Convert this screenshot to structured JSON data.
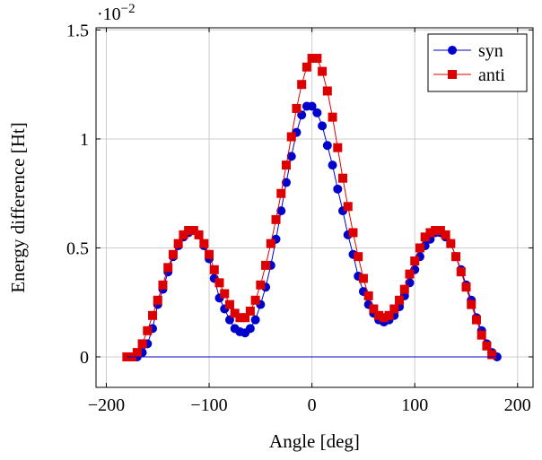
{
  "chart_data": {
    "type": "line",
    "xlabel": "Angle [deg]",
    "ylabel": "Energy difference [Ht]",
    "y_scale_label": "·10",
    "y_scale_exponent": "−2",
    "xlim": [
      -210,
      215
    ],
    "ylim": [
      -0.14,
      1.51
    ],
    "x_ticks": [
      -200,
      -100,
      0,
      100,
      200
    ],
    "x_tick_labels": [
      "−200",
      "−100",
      "0",
      "100",
      "200"
    ],
    "y_ticks": [
      0,
      0.5,
      1,
      1.5
    ],
    "y_tick_labels": [
      "0",
      "0.5",
      "1",
      "1.5"
    ],
    "grid": true,
    "legend_position": "top-right",
    "series": [
      {
        "name": "syn",
        "color": "#0000cc",
        "marker": "circle",
        "x": [
          -175,
          -170,
          -165,
          -160,
          -155,
          -150,
          -145,
          -140,
          -135,
          -130,
          -125,
          -120,
          -115,
          -110,
          -105,
          -100,
          -95,
          -90,
          -85,
          -80,
          -75,
          -70,
          -65,
          -60,
          -55,
          -50,
          -45,
          -40,
          -35,
          -30,
          -25,
          -20,
          -15,
          -10,
          -5,
          0,
          5,
          10,
          15,
          20,
          25,
          30,
          35,
          40,
          45,
          50,
          55,
          60,
          65,
          70,
          75,
          80,
          85,
          90,
          95,
          100,
          105,
          110,
          115,
          120,
          125,
          130,
          135,
          140,
          145,
          150,
          155,
          160,
          165,
          170,
          175,
          180
        ],
        "y": [
          0.0,
          0.0,
          0.02,
          0.06,
          0.13,
          0.24,
          0.31,
          0.39,
          0.46,
          0.51,
          0.55,
          0.57,
          0.58,
          0.56,
          0.51,
          0.45,
          0.36,
          0.27,
          0.22,
          0.17,
          0.13,
          0.115,
          0.11,
          0.13,
          0.17,
          0.24,
          0.32,
          0.42,
          0.54,
          0.67,
          0.8,
          0.92,
          1.03,
          1.11,
          1.15,
          1.15,
          1.12,
          1.06,
          0.97,
          0.88,
          0.77,
          0.67,
          0.56,
          0.47,
          0.37,
          0.3,
          0.24,
          0.2,
          0.17,
          0.16,
          0.17,
          0.19,
          0.23,
          0.28,
          0.34,
          0.4,
          0.46,
          0.51,
          0.54,
          0.57,
          0.57,
          0.55,
          0.52,
          0.46,
          0.4,
          0.33,
          0.26,
          0.18,
          0.12,
          0.06,
          0.02,
          0.0
        ]
      },
      {
        "name": "anti",
        "color": "#dd0000",
        "marker": "square",
        "x": [
          -180,
          -175,
          -170,
          -165,
          -160,
          -155,
          -150,
          -145,
          -140,
          -135,
          -130,
          -125,
          -120,
          -115,
          -110,
          -105,
          -100,
          -95,
          -90,
          -85,
          -80,
          -75,
          -70,
          -65,
          -60,
          -55,
          -50,
          -45,
          -40,
          -35,
          -30,
          -25,
          -20,
          -15,
          -10,
          -5,
          0,
          5,
          10,
          15,
          20,
          25,
          30,
          35,
          40,
          45,
          50,
          55,
          60,
          65,
          70,
          75,
          80,
          85,
          90,
          95,
          100,
          105,
          110,
          115,
          120,
          125,
          130,
          135,
          140,
          145,
          150,
          155,
          160,
          165,
          170,
          175
        ],
        "y": [
          0.0,
          0.0,
          0.02,
          0.06,
          0.12,
          0.19,
          0.26,
          0.33,
          0.41,
          0.47,
          0.52,
          0.56,
          0.58,
          0.58,
          0.56,
          0.52,
          0.47,
          0.4,
          0.34,
          0.29,
          0.24,
          0.2,
          0.18,
          0.18,
          0.21,
          0.26,
          0.33,
          0.42,
          0.52,
          0.63,
          0.75,
          0.88,
          1.01,
          1.14,
          1.25,
          1.33,
          1.37,
          1.37,
          1.31,
          1.22,
          1.1,
          0.96,
          0.82,
          0.69,
          0.57,
          0.46,
          0.36,
          0.28,
          0.22,
          0.19,
          0.18,
          0.19,
          0.22,
          0.26,
          0.31,
          0.38,
          0.44,
          0.5,
          0.55,
          0.57,
          0.58,
          0.58,
          0.56,
          0.52,
          0.46,
          0.39,
          0.32,
          0.24,
          0.17,
          0.1,
          0.05,
          0.01
        ]
      },
      {
        "name": "",
        "color": "#0000cc",
        "marker": "none",
        "x": [
          -180,
          180
        ],
        "y": [
          0,
          0
        ]
      }
    ]
  }
}
